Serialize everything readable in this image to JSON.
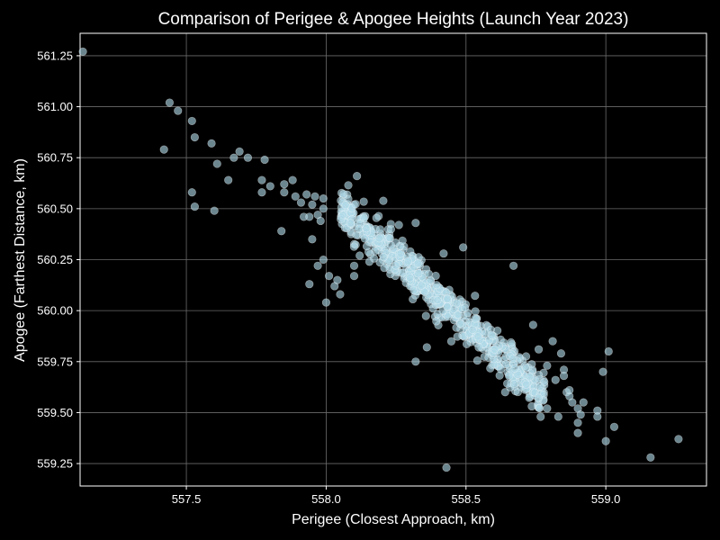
{
  "chart_data": {
    "type": "scatter",
    "title": "Comparison of Perigee & Apogee Heights (Launch Year 2023)",
    "xlabel": "Perigee (Closest Approach, km)",
    "ylabel": "Apogee (Farthest Distance, km)",
    "xlim": [
      557.12,
      559.36
    ],
    "ylim": [
      559.14,
      561.36
    ],
    "xticks": [
      557.5,
      558.0,
      558.5,
      559.0
    ],
    "xtick_labels": [
      "557.5",
      "558.0",
      "558.5",
      "559.0"
    ],
    "yticks": [
      559.25,
      559.5,
      559.75,
      560.0,
      560.25,
      560.5,
      560.75,
      561.0,
      561.25
    ],
    "ytick_labels": [
      "559.25",
      "559.50",
      "559.75",
      "560.00",
      "560.25",
      "560.50",
      "560.75",
      "561.00",
      "561.25"
    ],
    "grid": true,
    "colors": {
      "background": "#000000",
      "marker": "#aed8e6",
      "marker_edge": "#ffffff",
      "grid": "#6b6b6b",
      "text": "#ffffff"
    },
    "points": {
      "outliers": [
        [
          557.13,
          561.27
        ],
        [
          557.44,
          561.02
        ],
        [
          557.47,
          560.98
        ],
        [
          557.52,
          560.93
        ],
        [
          557.53,
          560.85
        ],
        [
          557.59,
          560.82
        ],
        [
          557.42,
          560.79
        ],
        [
          557.61,
          560.72
        ],
        [
          557.67,
          560.75
        ],
        [
          557.69,
          560.78
        ],
        [
          557.72,
          560.75
        ],
        [
          557.78,
          560.74
        ],
        [
          557.52,
          560.58
        ],
        [
          557.65,
          560.64
        ],
        [
          557.53,
          560.51
        ],
        [
          557.6,
          560.49
        ],
        [
          557.77,
          560.64
        ],
        [
          557.8,
          560.61
        ],
        [
          557.77,
          560.58
        ],
        [
          557.85,
          560.58
        ],
        [
          557.85,
          560.62
        ],
        [
          557.88,
          560.64
        ],
        [
          557.84,
          560.39
        ],
        [
          557.89,
          560.56
        ],
        [
          557.91,
          560.53
        ],
        [
          557.93,
          560.57
        ],
        [
          557.96,
          560.56
        ],
        [
          557.95,
          560.52
        ],
        [
          557.92,
          560.46
        ],
        [
          557.94,
          560.46
        ],
        [
          557.97,
          560.47
        ],
        [
          557.98,
          560.44
        ],
        [
          557.99,
          560.55
        ],
        [
          557.99,
          560.5
        ],
        [
          557.95,
          560.35
        ],
        [
          557.97,
          560.22
        ],
        [
          557.99,
          560.25
        ],
        [
          557.94,
          560.13
        ],
        [
          558.01,
          560.17
        ],
        [
          558.03,
          560.12
        ],
        [
          558.0,
          560.04
        ],
        [
          558.05,
          560.08
        ],
        [
          558.04,
          560.15
        ],
        [
          558.1,
          560.22
        ],
        [
          558.1,
          560.17
        ],
        [
          558.11,
          560.66
        ],
        [
          558.12,
          560.27
        ],
        [
          558.26,
          560.42
        ],
        [
          558.32,
          560.43
        ],
        [
          558.42,
          560.28
        ],
        [
          558.49,
          560.31
        ],
        [
          558.32,
          559.75
        ],
        [
          558.36,
          559.82
        ],
        [
          558.43,
          559.23
        ],
        [
          558.64,
          559.6
        ],
        [
          558.67,
          560.22
        ],
        [
          558.74,
          559.93
        ],
        [
          558.81,
          559.85
        ],
        [
          558.76,
          559.81
        ],
        [
          558.79,
          559.73
        ],
        [
          558.82,
          559.66
        ],
        [
          558.84,
          559.79
        ],
        [
          558.85,
          559.71
        ],
        [
          558.85,
          559.68
        ],
        [
          558.86,
          559.6
        ],
        [
          558.87,
          559.58
        ],
        [
          558.87,
          559.61
        ],
        [
          558.88,
          559.55
        ],
        [
          558.9,
          559.52
        ],
        [
          558.92,
          559.55
        ],
        [
          558.79,
          559.52
        ],
        [
          558.83,
          559.48
        ],
        [
          558.91,
          559.49
        ],
        [
          558.9,
          559.45
        ],
        [
          558.9,
          559.4
        ],
        [
          558.97,
          559.51
        ],
        [
          558.97,
          559.48
        ],
        [
          558.99,
          559.7
        ],
        [
          559.01,
          559.8
        ],
        [
          559.0,
          559.36
        ],
        [
          559.03,
          559.43
        ],
        [
          559.16,
          559.28
        ],
        [
          559.26,
          559.37
        ]
      ],
      "cluster": {
        "x_range": [
          558.05,
          558.78
        ],
        "center": [
          558.42,
          560.04
        ],
        "slope": -1.28,
        "spread": 0.055,
        "count": 620
      }
    }
  }
}
